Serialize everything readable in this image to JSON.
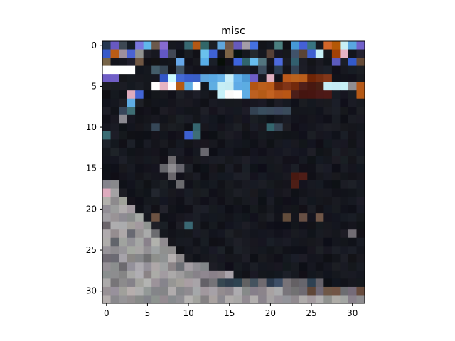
{
  "chart_data": {
    "type": "heatmap",
    "title": "misc",
    "xlabel": "",
    "ylabel": "",
    "xlim": [
      -0.5,
      31.5
    ],
    "ylim": [
      31.5,
      -0.5
    ],
    "grid": false,
    "x_ticks": [
      0,
      5,
      10,
      15,
      20,
      25,
      30
    ],
    "y_ticks": [
      0,
      5,
      10,
      15,
      20,
      25,
      30
    ],
    "rows": 32,
    "cols": 32,
    "colors": {
      "background": "#ffffff",
      "axes": "#000000",
      "scene": {
        "dark_base": "#13141b",
        "dark_alt": "#181a22",
        "interior": "#1b1c24",
        "shade": "#23242c",
        "bright_white": "#ffffff",
        "light_cyan": "#c8f0f8",
        "sky_blue": "#5aa8e0",
        "royal_blue": "#3c5fd0",
        "violet": "#7060c8",
        "rust": "#7a3010",
        "orange": "#b85a18",
        "maroon": "#4a1a14",
        "teal": "#3a6a72",
        "slate": "#39495a",
        "gray_light": "#a9a6a6",
        "gray_mid": "#8e8c90",
        "gray_dark": "#6c6a70",
        "pink": "#e0b0c0",
        "brown_mid": "#6a5040"
      }
    }
  }
}
